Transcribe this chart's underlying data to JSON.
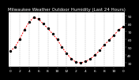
{
  "title": "Milwaukee Weather Outdoor Humidity (Last 24 Hours)",
  "x_values": [
    0,
    1,
    2,
    3,
    4,
    5,
    6,
    7,
    8,
    9,
    10,
    11,
    12,
    13,
    14,
    15,
    16,
    17,
    18,
    19,
    20,
    21,
    22,
    23,
    24
  ],
  "y_values": [
    45,
    50,
    60,
    72,
    82,
    88,
    86,
    80,
    74,
    67,
    60,
    50,
    42,
    35,
    31,
    30,
    32,
    35,
    40,
    46,
    53,
    59,
    65,
    72,
    76
  ],
  "y_min": 25,
  "y_max": 95,
  "y_ticks": [
    30,
    40,
    50,
    60,
    70,
    80,
    90
  ],
  "y_tick_labels": [
    "30",
    "40",
    "50",
    "60",
    "70",
    "80",
    "90"
  ],
  "x_tick_positions": [
    0,
    2,
    4,
    6,
    8,
    10,
    12,
    14,
    16,
    18,
    20,
    22,
    24
  ],
  "x_tick_labels": [
    "0",
    "2",
    "4",
    "6",
    "8",
    "10",
    "12",
    "2",
    "4",
    "6",
    "8",
    "10",
    "0"
  ],
  "grid_x_positions": [
    0,
    2,
    4,
    6,
    8,
    10,
    12,
    14,
    16,
    18,
    20,
    22,
    24
  ],
  "line_color": "#ff0000",
  "marker_color": "#000000",
  "bg_color": "#000000",
  "plot_bg_color": "#ffffff",
  "grid_color": "#888888",
  "border_color": "#000000",
  "title_color": "#ffffff",
  "tick_color": "#ffffff",
  "title_fontsize": 4.0,
  "tick_fontsize": 3.2,
  "line_width": 0.7,
  "marker_size": 2.0
}
